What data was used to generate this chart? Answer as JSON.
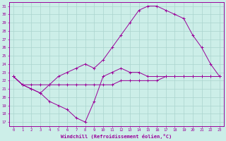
{
  "xlabel": "Windchill (Refroidissement éolien,°C)",
  "bg_color": "#cceee8",
  "grid_color": "#aad4ce",
  "line_color": "#990099",
  "xlim": [
    -0.5,
    23.5
  ],
  "ylim": [
    16.5,
    31.5
  ],
  "yticks": [
    17,
    18,
    19,
    20,
    21,
    22,
    23,
    24,
    25,
    26,
    27,
    28,
    29,
    30,
    31
  ],
  "xticks": [
    0,
    1,
    2,
    3,
    4,
    5,
    6,
    7,
    8,
    9,
    10,
    11,
    12,
    13,
    14,
    15,
    16,
    17,
    18,
    19,
    20,
    21,
    22,
    23
  ],
  "series": [
    {
      "x": [
        0,
        1,
        2,
        3,
        4,
        5,
        6,
        7,
        8,
        9,
        10,
        11,
        12,
        13,
        14,
        15,
        16,
        17,
        18,
        19,
        20,
        21,
        22,
        23
      ],
      "y": [
        22.5,
        21.5,
        21.5,
        21.5,
        21.5,
        21.5,
        21.5,
        21.5,
        21.5,
        21.5,
        21.5,
        21.5,
        22.0,
        22.0,
        22.0,
        22.0,
        22.0,
        22.5,
        22.5,
        22.5,
        22.5,
        22.5,
        22.5,
        22.5
      ]
    },
    {
      "x": [
        0,
        1,
        2,
        3,
        4,
        5,
        6,
        7,
        8,
        9,
        10,
        11,
        12,
        13,
        14,
        15,
        16,
        17,
        18,
        19,
        20,
        21,
        22,
        23
      ],
      "y": [
        22.5,
        21.5,
        21.0,
        20.5,
        21.5,
        22.5,
        23.0,
        23.5,
        24.0,
        23.5,
        24.5,
        26.0,
        27.5,
        29.0,
        30.5,
        31.0,
        31.0,
        30.5,
        30.0,
        29.5,
        27.5,
        26.0,
        24.0,
        22.5
      ]
    },
    {
      "x": [
        0,
        1,
        2,
        3,
        4,
        5,
        6,
        7,
        8,
        9,
        10,
        11,
        12,
        13,
        14,
        15,
        16,
        17,
        18,
        19,
        20,
        21,
        22,
        23
      ],
      "y": [
        22.5,
        21.5,
        21.0,
        20.5,
        19.5,
        19.0,
        18.5,
        17.5,
        17.0,
        19.5,
        22.5,
        23.0,
        23.5,
        23.0,
        23.0,
        22.5,
        22.5,
        22.5,
        22.5,
        22.5,
        22.5,
        22.5,
        22.5,
        22.5
      ]
    }
  ]
}
